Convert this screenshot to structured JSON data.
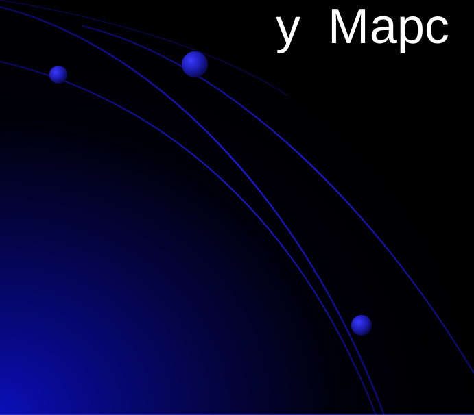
{
  "slide": {
    "title": "у  Марс"
  },
  "colors": {
    "background": "#000000",
    "glow": "#0b0fb8",
    "arc": "#1a1adf",
    "orb": "#2b2bd8",
    "title_text": "#ffffff"
  }
}
